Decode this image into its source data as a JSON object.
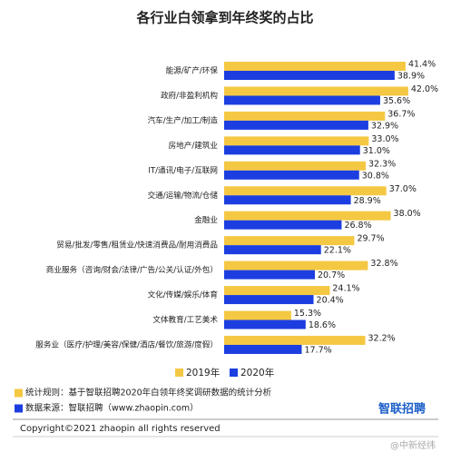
{
  "chart_data": {
    "type": "hbar",
    "title": "各行业白领拿到年终奖的占比",
    "categories": [
      "能源/矿产/环保",
      "政府/非盈利机构",
      "汽车/生产/加工/制造",
      "房地产/建筑业",
      "IT/通讯/电子/互联网",
      "交通/运输/物流/仓储",
      "金融业",
      "贸易/批发/零售/租赁业/快速消费品/耐用消费品",
      "商业服务（咨询/财会/法律/广告/公关/认证/外包）",
      "文化/传媒/娱乐/体育",
      "文体教育/工艺美术",
      "服务业（医疗/护理/美容/保健/酒店/餐饮/旅游/度假）"
    ],
    "series": [
      {
        "name": "2019年",
        "color": "#f5c843",
        "values": [
          41.4,
          42.0,
          36.7,
          33.0,
          32.3,
          37.0,
          38.0,
          29.7,
          32.8,
          24.1,
          15.3,
          32.2
        ],
        "value_labels": [
          "41.4%",
          "42.0%",
          "36.7%",
          "33.0%",
          "32.3%",
          "37.0%",
          "38.0%",
          "29.7%",
          "32.8%",
          "24.1%",
          "15.3%",
          "32.2%"
        ]
      },
      {
        "name": "2020年",
        "color": "#1c3ee0",
        "values": [
          38.9,
          35.6,
          32.9,
          31.0,
          30.8,
          28.9,
          26.8,
          22.1,
          20.7,
          20.4,
          18.6,
          17.7
        ],
        "value_labels": [
          "38.9%",
          "35.6%",
          "32.9%",
          "31.0%",
          "30.8%",
          "28.9%",
          "26.8%",
          "22.1%",
          "20.7%",
          "20.4%",
          "18.6%",
          "17.7%"
        ]
      }
    ],
    "legend": "bottom"
  },
  "notes": [
    "统计规则：基于智联招聘2020年白领年终奖调研数据的统计分析",
    "数据来源：智联招聘（www.zhaopin.com）"
  ],
  "logo": "智联招聘",
  "copyright": "Copyright©2021 zhaopin all rights reserved",
  "watermark": "@中新经纬"
}
